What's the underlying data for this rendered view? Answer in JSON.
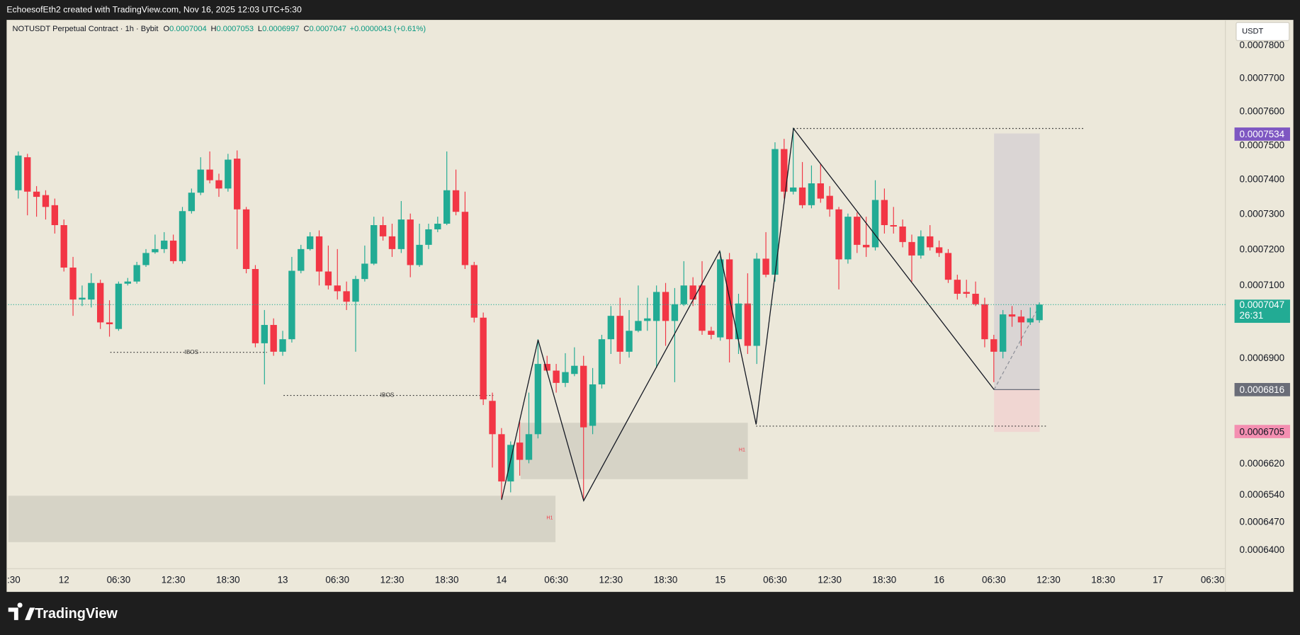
{
  "chart_data": {
    "type": "candlestick",
    "source": "EchoesofEth2 created with TradingView.com, Nov 16, 2025 12:03 UTC+5:30",
    "title": "NOTUSDT Perpetual Contract · 1h · Bybit",
    "ohlc_keys": [
      "O",
      "H",
      "L",
      "C"
    ],
    "change": "+0.0000043 (+0.61%)",
    "currency": "USDT",
    "countdown": "26:31",
    "brand": "TradingView",
    "annotations": [
      "IBOS",
      "IBOS",
      "H1",
      "H1"
    ],
    "log_scale": true,
    "grid": false,
    "up_color": "#22ab94",
    "down_color": "#f23645",
    "xlim": [
      -6.1,
      127.4
    ],
    "ylim": [
      0.0006354,
      0.0007879
    ],
    "xticks": [
      {
        "value": -5.5,
        "label": ":30"
      },
      {
        "value": 0,
        "label": "12"
      },
      {
        "value": 6,
        "label": "06:30"
      },
      {
        "value": 12,
        "label": "12:30"
      },
      {
        "value": 18,
        "label": "18:30"
      },
      {
        "value": 24,
        "label": "13"
      },
      {
        "value": 30,
        "label": "06:30"
      },
      {
        "value": 36,
        "label": "12:30"
      },
      {
        "value": 42,
        "label": "18:30"
      },
      {
        "value": 48,
        "label": "14"
      },
      {
        "value": 54,
        "label": "06:30"
      },
      {
        "value": 60,
        "label": "12:30"
      },
      {
        "value": 66,
        "label": "18:30"
      },
      {
        "value": 72,
        "label": "15"
      },
      {
        "value": 78,
        "label": "06:30"
      },
      {
        "value": 84,
        "label": "12:30"
      },
      {
        "value": 90,
        "label": "18:30"
      },
      {
        "value": 96,
        "label": "16"
      },
      {
        "value": 102,
        "label": "06:30"
      },
      {
        "value": 108,
        "label": "12:30"
      },
      {
        "value": 114,
        "label": "18:30"
      },
      {
        "value": 120,
        "label": "17"
      },
      {
        "value": 126,
        "label": "06:30"
      }
    ],
    "yticks": [
      {
        "value": 0.00078,
        "label": "0.0007800"
      },
      {
        "value": 0.00077,
        "label": "0.0007700"
      },
      {
        "value": 0.00076,
        "label": "0.0007600"
      },
      {
        "value": 0.00075,
        "label": "0.0007500"
      },
      {
        "value": 0.00074,
        "label": "0.0007400"
      },
      {
        "value": 0.00073,
        "label": "0.0007300"
      },
      {
        "value": 0.00072,
        "label": "0.0007200"
      },
      {
        "value": 0.00071,
        "label": "0.0007100"
      },
      {
        "value": 0.00069,
        "label": "0.0006900"
      },
      {
        "value": 0.000662,
        "label": "0.0006620"
      },
      {
        "value": 0.000654,
        "label": "0.0006540"
      },
      {
        "value": 0.000647,
        "label": "0.0006470"
      },
      {
        "value": 0.00064,
        "label": "0.0006400"
      }
    ],
    "price_labels": [
      {
        "value": 0.0007534,
        "color": "#7e57c2"
      },
      {
        "value": 0.0006816,
        "color": "#6a6d78"
      },
      {
        "value": 0.0006705,
        "color": "#f48fb1"
      }
    ],
    "x": [
      -5,
      -4,
      -3,
      -2,
      -1,
      0,
      1,
      2,
      3,
      4,
      5,
      6,
      7,
      8,
      9,
      10,
      11,
      12,
      13,
      14,
      15,
      16,
      17,
      18,
      19,
      20,
      21,
      22,
      23,
      24,
      25,
      26,
      27,
      28,
      29,
      30,
      31,
      32,
      33,
      34,
      35,
      36,
      37,
      38,
      39,
      40,
      41,
      42,
      43,
      44,
      45,
      46,
      47,
      48,
      49,
      50,
      51,
      52,
      53,
      54,
      55,
      56,
      57,
      58,
      59,
      60,
      61,
      62,
      63,
      64,
      65,
      66,
      67,
      68,
      69,
      70,
      71,
      72,
      73,
      74,
      75,
      76,
      77,
      78,
      79,
      80,
      81,
      82,
      83,
      84,
      85,
      86,
      87,
      88,
      89,
      90,
      91,
      92,
      93,
      94,
      95,
      96,
      97,
      98,
      99,
      100,
      101,
      102,
      103,
      104,
      105,
      106,
      107
    ],
    "open": [
      0.000737,
      0.0007466,
      0.0007366,
      0.0007356,
      0.0007327,
      0.000727,
      0.000715,
      0.0007061,
      0.0007061,
      0.0007107,
      0.0006998,
      0.000698,
      0.0007105,
      0.0007111,
      0.0007157,
      0.0007193,
      0.0007202,
      0.0007226,
      0.0007168,
      0.000731,
      0.0007363,
      0.000743,
      0.0007399,
      0.0007375,
      0.0007462,
      0.0007315,
      0.0007146,
      0.0006941,
      0.0006991,
      0.0006918,
      0.0006952,
      0.0007141,
      0.0007202,
      0.0007238,
      0.0007139,
      0.00071,
      0.0007084,
      0.0007055,
      0.0007118,
      0.0007161,
      0.000727,
      0.0007238,
      0.0007202,
      0.0007286,
      0.0007157,
      0.0007214,
      0.0007258,
      0.0007274,
      0.000737,
      0.0007308,
      0.0007157,
      0.0007011,
      0.0006786,
      0.0006698,
      0.0006575,
      0.0006676,
      0.0006631,
      0.0006698,
      0.0006885,
      0.0006867,
      0.0006834,
      0.0006858,
      0.000688,
      0.000672,
      0.000683,
      0.0006952,
      0.0007016,
      0.0006918,
      0.0006975,
      0.0007002,
      0.0007002,
      0.0007082,
      0.0007002,
      0.0007048,
      0.00071,
      0.00071,
      0.0006975,
      0.0006957,
      0.0007173,
      0.0006952,
      0.000705,
      0.0006934,
      0.0007175,
      0.000713,
      0.000749,
      0.0007366,
      0.0007378,
      0.0007327,
      0.000739,
      0.0007354,
      0.0007315,
      0.0007173,
      0.0007294,
      0.0007214,
      0.0007207,
      0.0007342,
      0.000727,
      0.0007266,
      0.0007222,
      0.0007184,
      0.0007238,
      0.0007207,
      0.0007191,
      0.0007116,
      0.0007082,
      0.0007077,
      0.0007048,
      0.0006952,
      0.0006918,
      0.000702,
      0.0007014,
      0.0006998,
      0.0007004
    ],
    "high": [
      0.0007483,
      0.0007476,
      0.0007382,
      0.000737,
      0.0007346,
      0.0007286,
      0.000718,
      0.00071,
      0.0007134,
      0.0007116,
      0.0007059,
      0.0007111,
      0.0007121,
      0.0007166,
      0.0007202,
      0.0007243,
      0.000725,
      0.0007243,
      0.0007322,
      0.0007375,
      0.0007466,
      0.0007483,
      0.0007418,
      0.0007476,
      0.0007486,
      0.0007322,
      0.0007157,
      0.0007032,
      0.0007009,
      0.0006975,
      0.000718,
      0.0007214,
      0.000725,
      0.0007255,
      0.0007212,
      0.0007202,
      0.0007111,
      0.0007127,
      0.0007212,
      0.0007294,
      0.0007294,
      0.0007274,
      0.0007339,
      0.0007303,
      0.0007274,
      0.0007274,
      0.0007294,
      0.0007483,
      0.000743,
      0.0007366,
      0.0007166,
      0.0007025,
      0.0006808,
      0.0006714,
      0.0006679,
      0.0006731,
      0.0006808,
      0.0006952,
      0.0006907,
      0.0006885,
      0.0006914,
      0.000693,
      0.0006907,
      0.0006874,
      0.0006964,
      0.0007043,
      0.0007066,
      0.0007032,
      0.00071,
      0.0007066,
      0.00071,
      0.0007107,
      0.0007093,
      0.0007168,
      0.0007123,
      0.0007168,
      0.0006986,
      0.0007195,
      0.0007191,
      0.0007077,
      0.0007134,
      0.0007191,
      0.000725,
      0.000751,
      0.000752,
      0.0007552,
      0.0007452,
      0.0007442,
      0.0007447,
      0.0007382,
      0.0007322,
      0.0007303,
      0.0007306,
      0.0007294,
      0.0007399,
      0.0007375,
      0.0007322,
      0.0007286,
      0.0007243,
      0.0007255,
      0.000727,
      0.0007226,
      0.0007202,
      0.000713,
      0.0007116,
      0.0007111,
      0.0007066,
      0.0006964,
      0.0007032,
      0.0007043,
      0.0007032,
      0.0007039,
      0.0007053
    ],
    "low": [
      0.0007346,
      0.0007298,
      0.0007294,
      0.0007286,
      0.0007246,
      0.0007139,
      0.0007016,
      0.0007043,
      0.0007039,
      0.000698,
      0.0006959,
      0.0006975,
      0.00071,
      0.0007105,
      0.0007152,
      0.0007189,
      0.0007191,
      0.0007161,
      0.0007161,
      0.0007303,
      0.0007356,
      0.000739,
      0.0007351,
      0.0007366,
      0.0007202,
      0.0007134,
      0.000693,
      0.000683,
      0.0006907,
      0.0006907,
      0.0006943,
      0.0007134,
      0.0007198,
      0.00071,
      0.0007089,
      0.0007061,
      0.0007032,
      0.0006918,
      0.0007111,
      0.0007157,
      0.0007226,
      0.000718,
      0.0007191,
      0.0007123,
      0.0007152,
      0.0007202,
      0.000725,
      0.000727,
      0.0007298,
      0.0007146,
      0.0006998,
      0.0006775,
      0.0006611,
      0.000653,
      0.0006547,
      0.000659,
      0.0006622,
      0.0006687,
      0.0006863,
      0.0006808,
      0.0006823,
      0.0006852,
      0.000653,
      0.0006698,
      0.0006819,
      0.0006912,
      0.0006885,
      0.0006902,
      0.0006971,
      0.0006975,
      0.0006874,
      0.0006934,
      0.0006836,
      0.0007043,
      0.0007043,
      0.0006964,
      0.0006952,
      0.0006948,
      0.0006889,
      0.0006912,
      0.0006912,
      0.0006885,
      0.0007123,
      0.0007111,
      0.0007346,
      0.0007358,
      0.0007318,
      0.0007318,
      0.0007334,
      0.0007294,
      0.0007089,
      0.0007161,
      0.0007191,
      0.000718,
      0.0007198,
      0.0007246,
      0.0007246,
      0.0007207,
      0.0007111,
      0.0007175,
      0.0007198,
      0.000718,
      0.0007107,
      0.0007061,
      0.0007066,
      0.0007043,
      0.000693,
      0.0006836,
      0.00069,
      0.0006986,
      0.0006934,
      0.0006991,
      0.0006997
    ],
    "close": [
      0.0007471,
      0.0007366,
      0.0007351,
      0.0007322,
      0.000727,
      0.000715,
      0.0007061,
      0.0007066,
      0.0007107,
      0.0006998,
      0.0006993,
      0.0007105,
      0.0007111,
      0.0007157,
      0.0007191,
      0.0007202,
      0.0007226,
      0.0007168,
      0.000731,
      0.0007363,
      0.000743,
      0.0007399,
      0.0007375,
      0.0007459,
      0.0007315,
      0.0007146,
      0.0006941,
      0.0006991,
      0.0006918,
      0.0006952,
      0.0007141,
      0.0007202,
      0.0007238,
      0.0007139,
      0.00071,
      0.0007084,
      0.0007055,
      0.0007118,
      0.0007161,
      0.000727,
      0.0007238,
      0.0007202,
      0.0007286,
      0.0007157,
      0.0007214,
      0.0007258,
      0.0007274,
      0.000737,
      0.0007308,
      0.0007157,
      0.0007011,
      0.000679,
      0.0006698,
      0.0006575,
      0.000667,
      0.0006631,
      0.0006698,
      0.0006885,
      0.0006867,
      0.0006834,
      0.0006863,
      0.000688,
      0.0006716,
      0.000683,
      0.0006952,
      0.0007016,
      0.0006918,
      0.0006975,
      0.0007002,
      0.0007009,
      0.0007082,
      0.0007002,
      0.0007048,
      0.00071,
      0.0007061,
      0.0006975,
      0.0006964,
      0.0007173,
      0.0006952,
      0.000705,
      0.0006934,
      0.0007175,
      0.000713,
      0.000749,
      0.0007366,
      0.0007378,
      0.0007327,
      0.000739,
      0.0007346,
      0.0007315,
      0.0007173,
      0.0007294,
      0.0007214,
      0.0007207,
      0.0007342,
      0.000727,
      0.0007266,
      0.0007222,
      0.0007184,
      0.0007238,
      0.0007207,
      0.0007191,
      0.0007116,
      0.0007077,
      0.0007077,
      0.0007048,
      0.0006952,
      0.0006918,
      0.000702,
      0.0007014,
      0.0006998,
      0.0007009,
      0.0007047
    ]
  }
}
